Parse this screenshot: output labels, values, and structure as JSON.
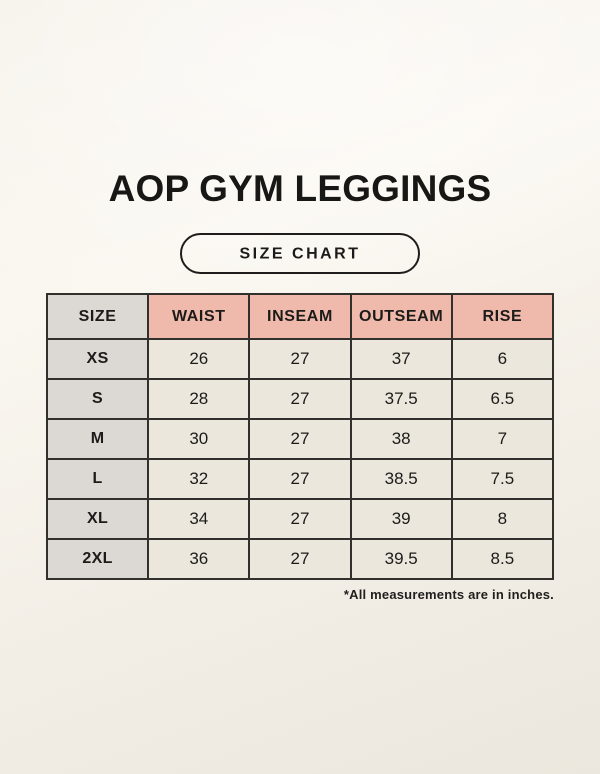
{
  "header": {
    "title": "AOP GYM LEGGINGS",
    "badge_label": "SIZE CHART"
  },
  "table": {
    "headers": [
      "SIZE",
      "WAIST",
      "INSEAM",
      "OUTSEAM",
      "RISE"
    ],
    "rows": [
      [
        "XS",
        "26",
        "27",
        "37",
        "6"
      ],
      [
        "S",
        "28",
        "27",
        "37.5",
        "6.5"
      ],
      [
        "M",
        "30",
        "27",
        "38",
        "7"
      ],
      [
        "L",
        "32",
        "27",
        "38.5",
        "7.5"
      ],
      [
        "XL",
        "34",
        "27",
        "39",
        "8"
      ],
      [
        "2XL",
        "36",
        "27",
        "39.5",
        "8.5"
      ]
    ],
    "footnote": "*All measurements are in inches."
  },
  "colors": {
    "header_fill": "#EFBAAB",
    "size_column_fill": "#DCD8D3",
    "cell_fill": "#EBE7DC",
    "table_border": "#32302C",
    "text": "#1C1B19",
    "background_top": "#FAF7F0",
    "background_bottom": "#EBE7DE"
  },
  "chart_data": {
    "type": "table",
    "title": "AOP GYM LEGGINGS",
    "subtitle": "SIZE CHART",
    "columns": [
      "SIZE",
      "WAIST",
      "INSEAM",
      "OUTSEAM",
      "RISE"
    ],
    "rows": [
      [
        "XS",
        26,
        27,
        37,
        6
      ],
      [
        "S",
        28,
        27,
        37.5,
        6.5
      ],
      [
        "M",
        30,
        27,
        38,
        7
      ],
      [
        "L",
        32,
        27,
        38.5,
        7.5
      ],
      [
        "XL",
        34,
        27,
        39,
        8
      ],
      [
        "2XL",
        36,
        27,
        39.5,
        8.5
      ]
    ],
    "units": "inches",
    "footnote": "*All measurements are in inches."
  }
}
